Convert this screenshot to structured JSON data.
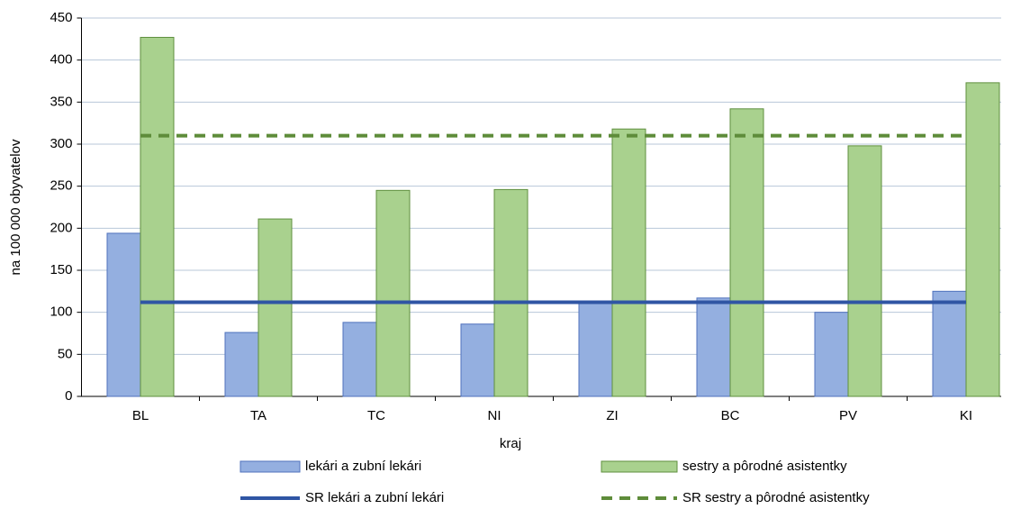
{
  "chart_data": {
    "type": "bar",
    "xlabel": "kraj",
    "ylabel": "na 100 000 obyvatelov",
    "categories": [
      "BL",
      "TA",
      "TC",
      "NI",
      "ZI",
      "BC",
      "PV",
      "KI"
    ],
    "series": [
      {
        "name": "lekári a zubní lekári",
        "color": "#94afe0",
        "edge": "#4f72bd",
        "values": [
          194,
          76,
          88,
          86,
          111,
          117,
          100,
          125
        ]
      },
      {
        "name": "sestry a pôrodné asistentky",
        "color": "#a9d18e",
        "edge": "#5f8f3e",
        "values": [
          427,
          211,
          245,
          246,
          318,
          342,
          298,
          373
        ]
      }
    ],
    "reference_lines": [
      {
        "name": "SR lekári a zubní lekári",
        "color": "#2f55a4",
        "style": "solid",
        "value": 112
      },
      {
        "name": "SR sestry a pôrodné asistentky",
        "color": "#5e8c3a",
        "style": "dashed",
        "value": 310
      }
    ],
    "ylim": [
      0,
      450
    ],
    "yticks": [
      0,
      50,
      100,
      150,
      200,
      250,
      300,
      350,
      400,
      450
    ],
    "grid": true
  }
}
